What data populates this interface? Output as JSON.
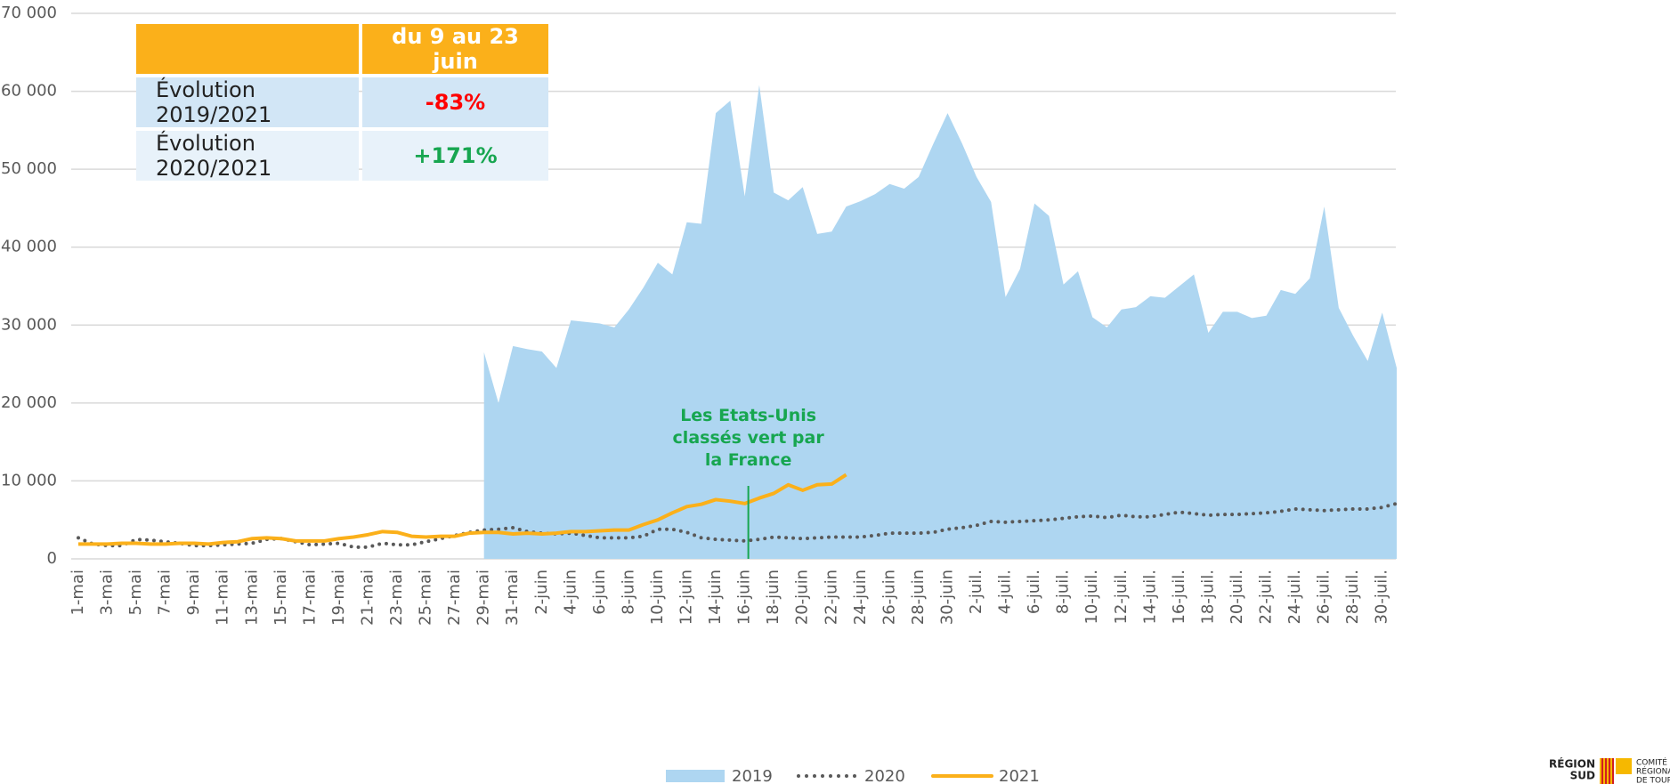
{
  "chart_data": {
    "type": "line",
    "ylim": [
      0,
      70000
    ],
    "yticks": [
      0,
      {
        "value": 10000,
        "label": "10 000"
      },
      {
        "value": 20000,
        "label": "20 000"
      },
      {
        "value": 30000,
        "label": "30 000"
      },
      {
        "value": 40000,
        "label": "40 000"
      },
      {
        "value": 50000,
        "label": "50 000"
      },
      {
        "value": 60000,
        "label": "60 000"
      },
      {
        "value": 70000,
        "label": "70 000"
      }
    ],
    "grid": true,
    "legend": "bottom",
    "categories": [
      "1-mai",
      null,
      "3-mai",
      null,
      "5-mai",
      null,
      "7-mai",
      null,
      "9-mai",
      null,
      "11-mai",
      null,
      "13-mai",
      null,
      "15-mai",
      null,
      "17-mai",
      null,
      "19-mai",
      null,
      "21-mai",
      null,
      "23-mai",
      null,
      "25-mai",
      null,
      "27-mai",
      null,
      "29-mai",
      null,
      "31-mai",
      null,
      "2-juin",
      null,
      "4-juin",
      null,
      "6-juin",
      null,
      "8-juin",
      null,
      "10-juin",
      null,
      "12-juin",
      null,
      "14-juin",
      null,
      "16-juin",
      null,
      "18-juin",
      null,
      "20-juin",
      null,
      "22-juin",
      null,
      "24-juin",
      null,
      "26-juin",
      null,
      "28-juin",
      null,
      "30-juin",
      null,
      "2-juil.",
      null,
      "4-juil.",
      null,
      "6-juil.",
      null,
      "8-juil.",
      null,
      "10-juil.",
      null,
      "12-juil.",
      null,
      "14-juil.",
      null,
      "16-juil.",
      null,
      "18-juil.",
      null,
      "20-juil.",
      null,
      "22-juil.",
      null,
      "24-juil.",
      null,
      "26-juil.",
      null,
      "28-juil.",
      null,
      "30-juil.",
      null
    ],
    "series": [
      {
        "name": "2019",
        "color": "#aed6f1",
        "style": "area",
        "values": [
          null,
          null,
          null,
          null,
          null,
          null,
          null,
          null,
          null,
          null,
          null,
          null,
          null,
          null,
          null,
          null,
          null,
          null,
          null,
          null,
          null,
          null,
          null,
          null,
          null,
          null,
          null,
          null,
          26500,
          20000,
          27300,
          26900,
          26600,
          24500,
          30600,
          30400,
          30200,
          29700,
          32000,
          34800,
          38000,
          36500,
          43200,
          43000,
          57200,
          58800,
          46500,
          60800,
          47000,
          46000,
          47700,
          41700,
          42000,
          45200,
          45900,
          46800,
          48100,
          47500,
          49000,
          53200,
          57200,
          53300,
          49000,
          45800,
          33600,
          37200,
          45600,
          44000,
          35200,
          36900,
          31000,
          29700,
          32000,
          32300,
          33700,
          33500,
          35000,
          36500,
          29000,
          31700,
          31700,
          30900,
          31200,
          34500,
          34000,
          36000,
          45200,
          32200,
          28600,
          25400,
          31600,
          24500
        ]
      },
      {
        "name": "2020",
        "color": "#595959",
        "style": "dotted",
        "values": [
          2700,
          1900,
          1700,
          1700,
          2500,
          2400,
          2200,
          2000,
          1700,
          1700,
          1800,
          1900,
          2000,
          2500,
          2600,
          2200,
          1800,
          1900,
          2000,
          1500,
          1500,
          2000,
          1800,
          1800,
          2200,
          2600,
          3000,
          3400,
          3700,
          3800,
          4000,
          3500,
          3300,
          3200,
          3300,
          3000,
          2700,
          2700,
          2700,
          2900,
          3800,
          3800,
          3400,
          2700,
          2500,
          2400,
          2300,
          2500,
          2800,
          2700,
          2600,
          2700,
          2800,
          2800,
          2800,
          3000,
          3300,
          3300,
          3300,
          3400,
          3800,
          4000,
          4300,
          4800,
          4700,
          4800,
          4900,
          5000,
          5200,
          5400,
          5500,
          5300,
          5600,
          5400,
          5400,
          5700,
          6000,
          5800,
          5600,
          5700,
          5700,
          5800,
          5900,
          6100,
          6400,
          6300,
          6200,
          6300,
          6400,
          6400,
          6600,
          7100
        ]
      },
      {
        "name": "2021",
        "color": "#fbb01a",
        "style": "solid",
        "values": [
          1900,
          1900,
          1900,
          2000,
          2000,
          1900,
          1900,
          2000,
          2000,
          1900,
          2100,
          2200,
          2600,
          2700,
          2600,
          2300,
          2300,
          2300,
          2600,
          2800,
          3100,
          3500,
          3400,
          2900,
          2800,
          2900,
          2900,
          3300,
          3400,
          3400,
          3200,
          3300,
          3200,
          3300,
          3500,
          3500,
          3600,
          3700,
          3700,
          4400,
          5000,
          5900,
          6700,
          7000,
          7600,
          7400,
          7100,
          7800,
          8400,
          9500,
          8800,
          9500,
          9600,
          10800,
          null,
          null,
          null,
          null,
          null,
          null,
          null,
          null,
          null,
          null,
          null,
          null,
          null,
          null,
          null,
          null,
          null,
          null,
          null,
          null,
          null,
          null,
          null,
          null,
          null,
          null,
          null,
          null,
          null,
          null,
          null,
          null,
          null,
          null,
          null,
          null,
          null,
          null
        ]
      }
    ],
    "annotation": {
      "text": "Les Etats-Unis classés vert par la France",
      "category": "16-juin",
      "color": "#17a650"
    }
  },
  "table": {
    "header": [
      "",
      "du 9 au 23 juin"
    ],
    "header_color": "#fbb01a",
    "rows": [
      [
        "Évolution 2019/2021",
        "-83%"
      ],
      [
        "Évolution 2020/2021",
        "+171%"
      ]
    ],
    "row_colors": [
      "#d2e6f6",
      "#e8f2fa"
    ],
    "value_colors": [
      "#ff0000",
      "#17a650"
    ]
  },
  "logo": {
    "name": [
      "RÉGION",
      "SUD"
    ],
    "org": [
      "COMITÉ",
      "RÉGIONAL",
      "DE TOURISME"
    ]
  }
}
